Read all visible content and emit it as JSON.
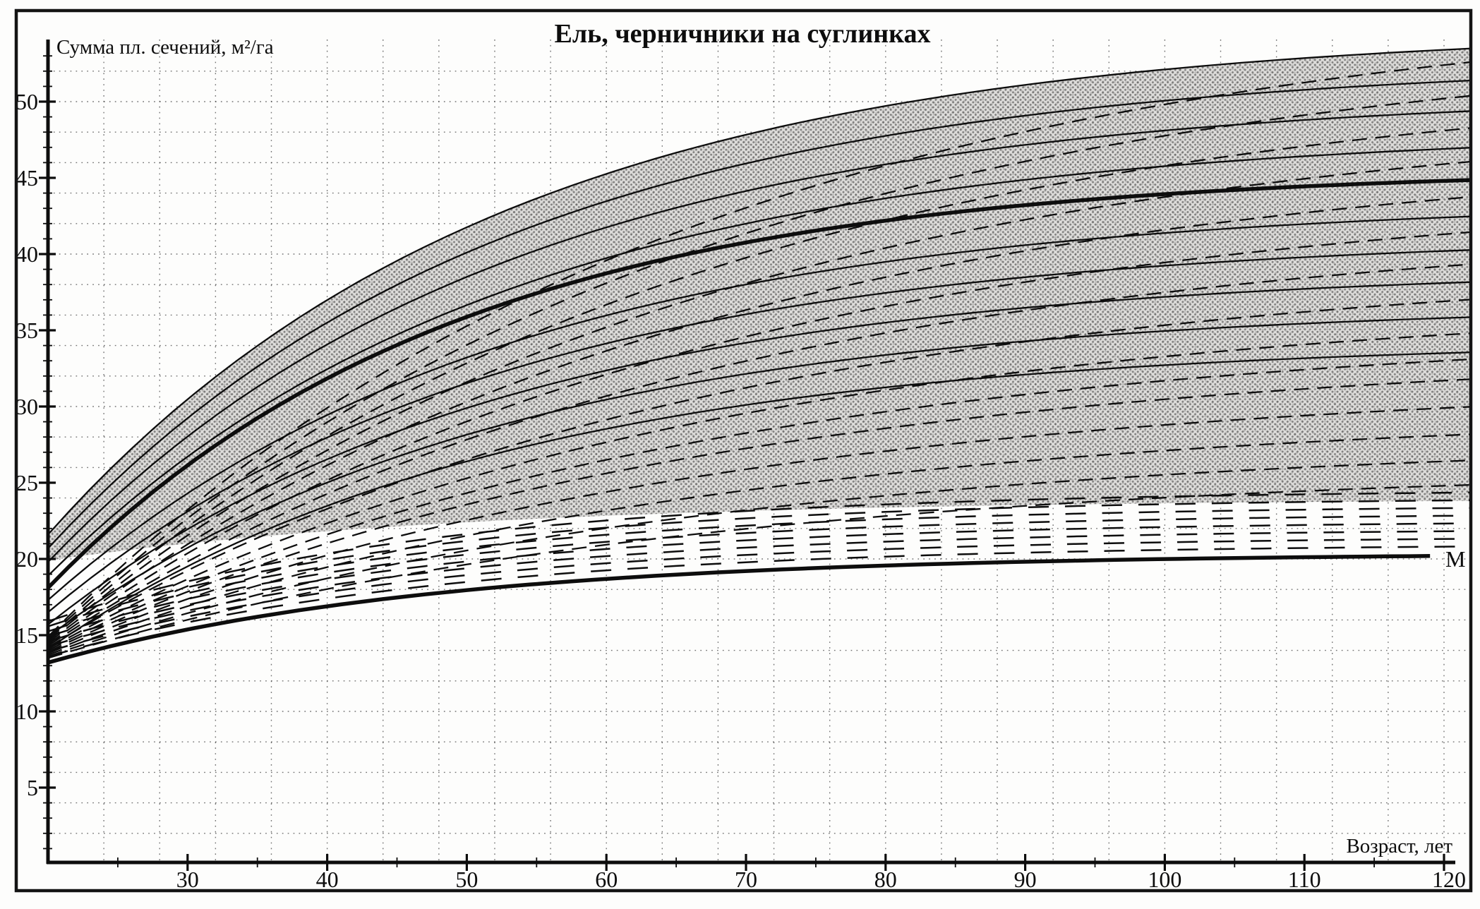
{
  "figure": {
    "background": "#fdfdfc",
    "ink_color": "#0d0d0d",
    "band_fill_base": "#dedddb",
    "band_halftone_dot": "#000000"
  },
  "chart_data": {
    "type": "line",
    "title": "Ель, черничники на суглинках",
    "ylabel": "Сумма пл. сечений, м²/га",
    "xlabel": "Возраст, лет",
    "x_range": [
      20,
      122
    ],
    "y_range": [
      0,
      54
    ],
    "x_ticks_major": [
      30,
      40,
      50,
      60,
      70,
      80,
      90,
      100,
      110,
      120
    ],
    "x_ticks_minor": [
      25,
      35,
      45,
      55,
      65,
      75,
      85,
      95,
      105,
      115
    ],
    "y_ticks_major": [
      5,
      10,
      15,
      20,
      25,
      30,
      35,
      40,
      45,
      50
    ],
    "y_ticks_minor_step": 1,
    "grid": {
      "style": "dotted",
      "x_step_years": 4,
      "y_step_units": 2
    },
    "curve_model": "v(t) = A - (A - start)*exp(-k*(t-20)), with A chosen so that v(120) = end",
    "series": [
      {
        "name": "mean-stand-basal-area",
        "style": "solid-thick",
        "start": 18.1,
        "end": 44.8,
        "k": 0.0345,
        "ages": [
          20,
          30,
          40,
          50,
          60,
          70,
          80,
          90,
          100,
          110,
          120
        ],
        "values": [
          18.1,
          26.1,
          31.8,
          35.9,
          38.7,
          40.8,
          42.2,
          43.2,
          44.0,
          44.4,
          44.8
        ]
      },
      {
        "name": "minimum-basal-area",
        "label": "М",
        "style": "solid-thick",
        "start": 13.2,
        "end": 20.2,
        "k": 0.036,
        "ages": [
          20,
          30,
          40,
          50,
          60,
          70,
          80,
          90,
          100,
          110,
          120
        ],
        "values": [
          13.2,
          15.4,
          16.9,
          18.0,
          18.7,
          19.2,
          19.6,
          19.8,
          20.0,
          20.1,
          20.2
        ]
      }
    ],
    "families": [
      {
        "name": "basal-area-isolines",
        "style": "solid-thin",
        "k": 0.031,
        "curves": [
          {
            "start": 21.6,
            "end": 53.4
          },
          {
            "start": 20.7,
            "end": 51.3
          },
          {
            "start": 19.8,
            "end": 49.3
          },
          {
            "start": 18.9,
            "end": 46.9
          },
          {
            "start": 17.3,
            "end": 42.4
          },
          {
            "start": 16.5,
            "end": 40.2
          },
          {
            "start": 15.7,
            "end": 38.1
          },
          {
            "start": 14.9,
            "end": 35.8
          },
          {
            "start": 14.1,
            "end": 33.5
          }
        ]
      },
      {
        "name": "thinning-trajectories-upper",
        "style": "dashed",
        "k": 0.022,
        "starts": [
          13.5,
          13.6,
          13.7,
          13.8,
          13.9,
          14.0,
          14.1,
          14.2,
          14.3,
          14.4,
          14.5,
          14.6,
          14.7,
          14.8,
          14.9
        ],
        "ends": [
          24.8,
          26.4,
          28.1,
          29.9,
          31.7,
          33.0,
          34.7,
          36.9,
          39.2,
          41.3,
          43.6,
          45.9,
          48.1,
          50.2,
          52.4
        ]
      },
      {
        "name": "thinning-trajectories-lower",
        "style": "dashed-long",
        "based_on": "minimum-basal-area",
        "multipliers": [
          1.03,
          1.055,
          1.08,
          1.105,
          1.13,
          1.155,
          1.18,
          1.205
        ]
      }
    ],
    "shaded_band": {
      "description": "halftone grey zone between top isoline and lower limit curve",
      "top": {
        "start": 21.6,
        "end": 53.4,
        "k": 0.031
      },
      "bottom": {
        "start": 19.9,
        "end": 23.8,
        "k": 0.032
      },
      "fill": "halftone-gray"
    }
  }
}
